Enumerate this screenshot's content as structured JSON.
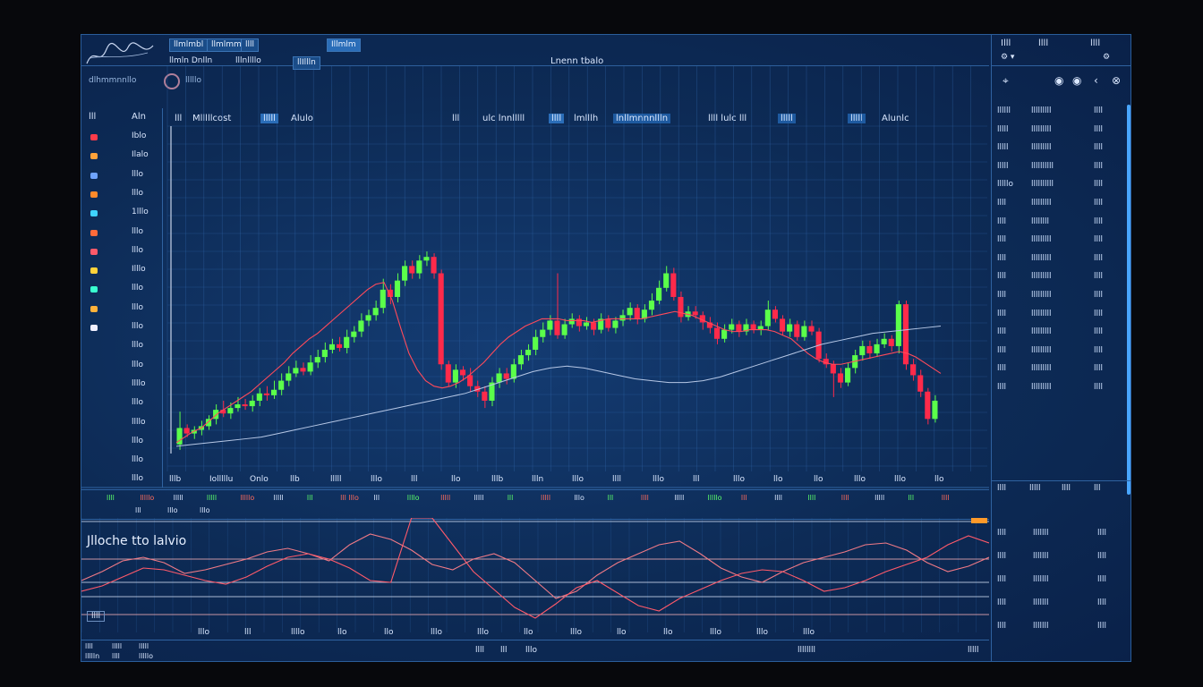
{
  "window": {
    "title": "Lnenn tbalo"
  },
  "topbar": {
    "labels": [
      "llmlmbl",
      "llmlmm",
      "llll",
      "Illmlm"
    ],
    "row2": [
      "llmln Dnlln",
      "lllnllllo",
      "llIllln"
    ],
    "right_icons": [
      "Illl",
      "llll",
      "lllo",
      "llmn"
    ]
  },
  "toolbar2": {
    "label": "dlhmmnnllo",
    "badge": "lllllo"
  },
  "main_chart": {
    "header_left": [
      "lll",
      "Mlllllcost",
      "lllll",
      "Alulo"
    ],
    "header_mid": [
      "lll",
      "ulc lnnlllll",
      "llll",
      "lmlllh",
      "lnllmnnnllln",
      "llll lulc lll",
      "lllll",
      "llllun"
    ],
    "header_right": [
      "lllll",
      "Alunlc"
    ]
  },
  "left_panel": {
    "top_label": "lll",
    "top_value": "Aln",
    "values": [
      "Iblo",
      "Ilalo",
      "lllo",
      "lllo",
      "1lllo",
      "lllo",
      "lllo",
      "Illlo",
      "lllo",
      "lllo",
      "lllo",
      "lllo",
      "lllo",
      "llllo",
      "lllo",
      "llllo",
      "lllo",
      "lllo",
      "lllo"
    ]
  },
  "x_axis": {
    "ticks": [
      "lllb",
      "Iolllllu",
      "Onlo",
      "llb",
      "lllll",
      "lllo",
      "lll",
      "llo",
      "lllb",
      "llln",
      "lllo",
      "llll",
      "lllo",
      "lll",
      "lllo",
      "llo",
      "llo",
      "lllo",
      "lllo",
      "llo"
    ]
  },
  "indicator_header": {
    "row1": [
      "llll",
      "lllllo",
      "lllll",
      "lllll",
      "lllllo",
      "lllll",
      "lll",
      "lll lllo",
      "lll",
      "llllo",
      "lllll",
      "lllll",
      "lll",
      "lllll",
      "lllo",
      "lll",
      "llll",
      "lllll",
      "lllllo",
      "lll",
      "llll",
      "llll",
      "llll",
      "lllll",
      "lll",
      "llll"
    ],
    "row2": [
      "lll",
      "lllo",
      "lllo"
    ]
  },
  "indicator": {
    "title": "Jlloche tto   lalvio",
    "left_box": "llll"
  },
  "bottom_bar": {
    "left": [
      "llll",
      "lllll",
      "lllll",
      "llllln",
      "llll",
      "lllllo"
    ],
    "ticks": [
      "lllo",
      "lll",
      "llllo",
      "llo",
      "llo",
      "lllo",
      "lllo",
      "llo",
      "lllo",
      "llo",
      "llo",
      "lllo",
      "lllo",
      "lllo"
    ],
    "center": [
      "llll",
      "lll",
      "lllo"
    ],
    "right": [
      "llllllll",
      "lllll"
    ]
  },
  "right_panel": {
    "header_icons": [
      "Illl",
      "llll",
      "llll"
    ],
    "rows": [
      {
        "a": "llllll",
        "b": "lllllllll",
        "c": "llll"
      },
      {
        "a": "lllll",
        "b": "lllllllll",
        "c": "llll"
      },
      {
        "a": "lllll",
        "b": "lllllllll",
        "c": "llll"
      },
      {
        "a": "lllll",
        "b": "llllllllll",
        "c": "llll"
      },
      {
        "a": "lllllo",
        "b": "llllllllll",
        "c": "llll"
      },
      {
        "a": "llll",
        "b": "lllllllll",
        "c": "llll"
      },
      {
        "a": "llll",
        "b": "llllllll",
        "c": "llll"
      },
      {
        "a": "llll",
        "b": "lllllllll",
        "c": "llll"
      },
      {
        "a": "llll",
        "b": "lllllllll",
        "c": "llll"
      },
      {
        "a": "llll",
        "b": "lllllllll",
        "c": "llll"
      },
      {
        "a": "llll",
        "b": "lllllllll",
        "c": "llll"
      },
      {
        "a": "llll",
        "b": "lllllllll",
        "c": "llll"
      },
      {
        "a": "llll",
        "b": "lllllllll",
        "c": "llll"
      },
      {
        "a": "llll",
        "b": "lllllllll",
        "c": "llll"
      },
      {
        "a": "llll",
        "b": "lllllllll",
        "c": "llll"
      },
      {
        "a": "llll",
        "b": "lllllllll",
        "c": "llll"
      }
    ],
    "mid_row": [
      "llll",
      "lllll",
      "llll",
      "lll"
    ],
    "lower_rows": [
      {
        "a": "llll",
        "b": "lllllll",
        "c": "llll"
      },
      {
        "a": "llll",
        "b": "lllllll",
        "c": "llll"
      },
      {
        "a": "llll",
        "b": "lllllll",
        "c": "llll"
      },
      {
        "a": "llll",
        "b": "lllllll",
        "c": "llll"
      },
      {
        "a": "llll",
        "b": "lllllll",
        "c": "llll"
      }
    ]
  },
  "colors": {
    "up": "#5bff4a",
    "down": "#ff2a4a",
    "grid": "#2f65a8",
    "accent": "#49a6ff"
  },
  "chart_data": {
    "type": "candlestick",
    "candles": [
      [
        488,
        470,
        494,
        452
      ],
      [
        470,
        476,
        480,
        466
      ],
      [
        476,
        472,
        482,
        468
      ],
      [
        472,
        468,
        478,
        462
      ],
      [
        468,
        460,
        472,
        456
      ],
      [
        460,
        450,
        466,
        444
      ],
      [
        450,
        454,
        458,
        440
      ],
      [
        454,
        448,
        460,
        442
      ],
      [
        448,
        444,
        452,
        436
      ],
      [
        444,
        446,
        450,
        438
      ],
      [
        446,
        440,
        452,
        434
      ],
      [
        440,
        432,
        446,
        426
      ],
      [
        432,
        434,
        440,
        424
      ],
      [
        434,
        428,
        438,
        418
      ],
      [
        428,
        418,
        434,
        410
      ],
      [
        418,
        410,
        424,
        402
      ],
      [
        410,
        404,
        414,
        396
      ],
      [
        404,
        408,
        412,
        398
      ],
      [
        408,
        398,
        412,
        390
      ],
      [
        398,
        392,
        404,
        384
      ],
      [
        392,
        384,
        398,
        376
      ],
      [
        384,
        378,
        388,
        372
      ],
      [
        378,
        382,
        386,
        370
      ],
      [
        382,
        370,
        388,
        362
      ],
      [
        370,
        364,
        376,
        358
      ],
      [
        364,
        352,
        370,
        344
      ],
      [
        352,
        346,
        358,
        340
      ],
      [
        346,
        338,
        352,
        330
      ],
      [
        338,
        318,
        344,
        306
      ],
      [
        318,
        326,
        334,
        312
      ],
      [
        326,
        308,
        332,
        300
      ],
      [
        308,
        292,
        314,
        286
      ],
      [
        292,
        300,
        306,
        286
      ],
      [
        300,
        286,
        306,
        280
      ],
      [
        286,
        282,
        292,
        276
      ],
      [
        282,
        300,
        306,
        278
      ],
      [
        300,
        400,
        406,
        296
      ],
      [
        400,
        420,
        424,
        396
      ],
      [
        420,
        406,
        426,
        400
      ],
      [
        406,
        412,
        418,
        402
      ],
      [
        412,
        424,
        430,
        404
      ],
      [
        424,
        430,
        436,
        418
      ],
      [
        430,
        440,
        448,
        424
      ],
      [
        440,
        420,
        446,
        414
      ],
      [
        420,
        410,
        426,
        404
      ],
      [
        410,
        416,
        422,
        404
      ],
      [
        416,
        400,
        420,
        394
      ],
      [
        400,
        390,
        406,
        384
      ],
      [
        390,
        384,
        396,
        378
      ],
      [
        384,
        370,
        390,
        362
      ],
      [
        370,
        362,
        376,
        354
      ],
      [
        362,
        352,
        368,
        346
      ],
      [
        352,
        368,
        372,
        300
      ],
      [
        368,
        356,
        372,
        350
      ],
      [
        356,
        350,
        360,
        344
      ],
      [
        350,
        358,
        364,
        346
      ],
      [
        358,
        354,
        362,
        348
      ],
      [
        354,
        362,
        368,
        350
      ],
      [
        362,
        350,
        366,
        344
      ],
      [
        350,
        360,
        364,
        346
      ],
      [
        360,
        352,
        366,
        348
      ],
      [
        352,
        346,
        358,
        340
      ],
      [
        346,
        338,
        352,
        332
      ],
      [
        338,
        350,
        356,
        334
      ],
      [
        350,
        340,
        354,
        334
      ],
      [
        340,
        330,
        346,
        322
      ],
      [
        330,
        316,
        334,
        308
      ],
      [
        316,
        300,
        320,
        292
      ],
      [
        300,
        326,
        330,
        294
      ],
      [
        326,
        348,
        354,
        320
      ],
      [
        348,
        342,
        352,
        336
      ],
      [
        342,
        346,
        350,
        336
      ],
      [
        346,
        354,
        362,
        342
      ],
      [
        354,
        360,
        366,
        348
      ],
      [
        360,
        372,
        378,
        354
      ],
      [
        372,
        362,
        376,
        356
      ],
      [
        362,
        356,
        366,
        350
      ],
      [
        356,
        364,
        370,
        352
      ],
      [
        364,
        356,
        368,
        350
      ],
      [
        356,
        362,
        366,
        352
      ],
      [
        362,
        358,
        368,
        352
      ],
      [
        358,
        340,
        362,
        330
      ],
      [
        340,
        350,
        354,
        336
      ],
      [
        350,
        364,
        368,
        346
      ],
      [
        364,
        356,
        370,
        350
      ],
      [
        356,
        370,
        374,
        352
      ],
      [
        370,
        358,
        374,
        352
      ],
      [
        358,
        364,
        368,
        352
      ],
      [
        364,
        394,
        398,
        360
      ],
      [
        394,
        400,
        404,
        388
      ],
      [
        400,
        410,
        436,
        396
      ],
      [
        410,
        420,
        426,
        404
      ],
      [
        420,
        404,
        424,
        398
      ],
      [
        404,
        390,
        410,
        384
      ],
      [
        390,
        380,
        396,
        374
      ],
      [
        380,
        388,
        394,
        374
      ],
      [
        388,
        378,
        392,
        372
      ],
      [
        378,
        372,
        382,
        366
      ],
      [
        372,
        380,
        386,
        368
      ],
      [
        380,
        334,
        388,
        330
      ],
      [
        334,
        400,
        406,
        330
      ],
      [
        400,
        412,
        418,
        394
      ],
      [
        412,
        430,
        436,
        406
      ],
      [
        430,
        460,
        466,
        426
      ],
      [
        460,
        440,
        464,
        434
      ]
    ],
    "ma_fast": [
      486,
      480,
      474,
      470,
      462,
      454,
      448,
      442,
      436,
      430,
      422,
      414,
      406,
      398,
      388,
      380,
      372,
      366,
      358,
      350,
      342,
      334,
      326,
      318,
      312,
      310,
      330,
      360,
      388,
      406,
      418,
      424,
      426,
      424,
      420,
      414,
      406,
      398,
      388,
      378,
      370,
      364,
      358,
      354,
      350,
      350,
      350,
      352,
      352,
      352,
      354,
      352,
      350,
      350,
      350,
      350,
      350,
      348,
      346,
      344,
      342,
      344,
      346,
      350,
      354,
      358,
      362,
      364,
      364,
      362,
      362,
      362,
      364,
      368,
      372,
      380,
      388,
      394,
      398,
      400,
      400,
      398,
      396,
      394,
      392,
      390,
      388,
      386,
      388,
      392,
      398,
      404,
      410
    ],
    "ma_slow": [
      490,
      488,
      486,
      484,
      482,
      480,
      476,
      472,
      468,
      464,
      460,
      456,
      452,
      448,
      444,
      440,
      436,
      432,
      426,
      420,
      414,
      408,
      404,
      402,
      404,
      408,
      412,
      416,
      418,
      420,
      420,
      418,
      414,
      408,
      402,
      396,
      390,
      384,
      378,
      374,
      370,
      366,
      364,
      362,
      360,
      358
    ]
  }
}
